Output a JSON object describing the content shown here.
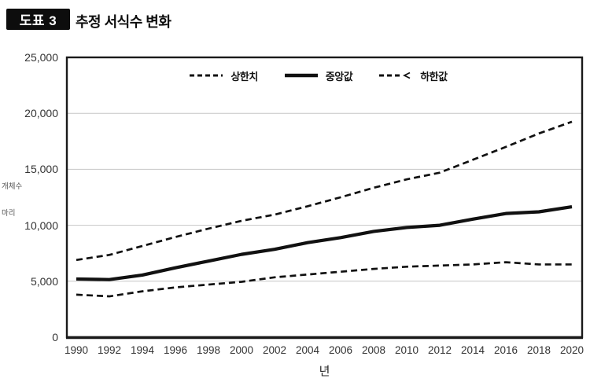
{
  "header": {
    "badge": "도표 3",
    "title": "추정 서식수 변화"
  },
  "chart_data": {
    "type": "line",
    "title": "추정 서식수 변화",
    "x": [
      1990,
      1992,
      1994,
      1996,
      1998,
      2000,
      2002,
      2004,
      2006,
      2008,
      2010,
      2012,
      2014,
      2016,
      2018,
      2020
    ],
    "xtick_labels": [
      "1990",
      "1992",
      "1994",
      "1996",
      "1998",
      "2000",
      "2002",
      "2004",
      "2006",
      "2008",
      "2010",
      "2012",
      "2014",
      "2016",
      "2018",
      "2020"
    ],
    "series": [
      {
        "name": "상한치",
        "style": "dashed",
        "values": [
          6900,
          7350,
          8150,
          8950,
          9700,
          10400,
          10950,
          11700,
          12500,
          13350,
          14100,
          14700,
          15850,
          17000,
          18200,
          19250
        ]
      },
      {
        "name": "중앙값",
        "style": "solid",
        "values": [
          5200,
          5150,
          5550,
          6200,
          6800,
          7400,
          7850,
          8450,
          8900,
          9450,
          9800,
          10000,
          10550,
          11050,
          11200,
          11650
        ]
      },
      {
        "name": "하한값",
        "style": "dashed",
        "legend_marker": "<",
        "values": [
          3800,
          3650,
          4100,
          4450,
          4700,
          4950,
          5350,
          5600,
          5850,
          6100,
          6300,
          6400,
          6500,
          6700,
          6500,
          6500
        ]
      }
    ],
    "xlabel": "년",
    "ylabel_lines": [
      "개체수",
      "마리"
    ],
    "ylim": [
      0,
      25000
    ],
    "yticks": [
      0,
      5000,
      10000,
      15000,
      20000,
      25000
    ],
    "ytick_labels": [
      "0",
      "5,000",
      "10,000",
      "15,000",
      "20,000",
      "25,000"
    ],
    "grid": "horizontal-only",
    "legend_position": "top-center",
    "colors": {
      "line": "#111111",
      "grid": "#c6c6c6",
      "axis": "#1a1a1a",
      "tick_text": "#333333"
    }
  }
}
